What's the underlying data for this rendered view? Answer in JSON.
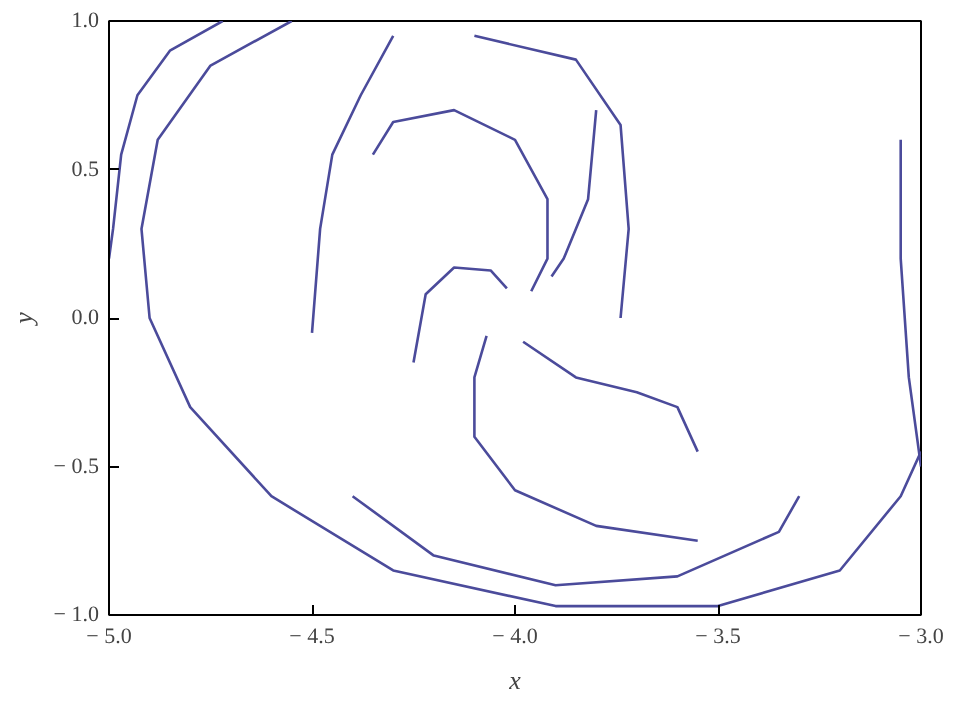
{
  "chart_data": {
    "type": "line",
    "xlabel": "x",
    "ylabel": "y",
    "xlim": [
      -5,
      -3
    ],
    "ylim": [
      -1,
      1
    ],
    "xticks": [
      {
        "value": -5,
        "label": "− 5.0"
      },
      {
        "value": -4.5,
        "label": "− 4.5"
      },
      {
        "value": -4,
        "label": "− 4.0"
      },
      {
        "value": -3.5,
        "label": "− 3.5"
      },
      {
        "value": -3,
        "label": "− 3.0"
      }
    ],
    "yticks": [
      {
        "value": -1,
        "label": "− 1.0"
      },
      {
        "value": -0.5,
        "label": "− 0.5"
      },
      {
        "value": 0,
        "label": "0.0"
      },
      {
        "value": 0.5,
        "label": "0.5"
      },
      {
        "value": 1,
        "label": "1.0"
      }
    ],
    "grid": false,
    "line_style": "solid",
    "marker": "none",
    "series": [
      {
        "color": "#4b4b9b",
        "x": [
          -4.72,
          -4.85,
          -4.93,
          -4.97,
          -4.99,
          -5.0
        ],
        "values": [
          1.0,
          0.9,
          0.75,
          0.55,
          0.3,
          0.2
        ]
      },
      {
        "color": "#4b4b9b",
        "x": [
          -4.55,
          -4.75,
          -4.88,
          -4.92,
          -4.9,
          -4.8,
          -4.6,
          -4.3,
          -3.9,
          -3.5,
          -3.2,
          -3.05,
          -3.0
        ],
        "values": [
          1.0,
          0.85,
          0.6,
          0.3,
          0.0,
          -0.3,
          -0.6,
          -0.85,
          -0.97,
          -0.97,
          -0.85,
          -0.6,
          -0.45
        ]
      },
      {
        "color": "#4b4b9b",
        "x": [
          -3.8,
          -3.82,
          -3.88,
          -3.91
        ],
        "values": [
          0.7,
          0.4,
          0.2,
          0.14
        ]
      },
      {
        "color": "#4b4b9b",
        "x": [
          -4.35,
          -4.3,
          -4.15,
          -4.0,
          -3.92,
          -3.92,
          -3.96
        ],
        "values": [
          0.55,
          0.66,
          0.7,
          0.6,
          0.4,
          0.2,
          0.09
        ]
      },
      {
        "color": "#4b4b9b",
        "x": [
          -4.25,
          -4.22,
          -4.15,
          -4.06,
          -4.02
        ],
        "values": [
          -0.15,
          0.08,
          0.17,
          0.16,
          0.1
        ]
      },
      {
        "color": "#4b4b9b",
        "x": [
          -3.55,
          -3.6,
          -3.7,
          -3.85,
          -3.98
        ],
        "values": [
          -0.45,
          -0.3,
          -0.25,
          -0.2,
          -0.08
        ]
      },
      {
        "color": "#4b4b9b",
        "x": [
          -3.05,
          -3.05,
          -3.03,
          -3.0
        ],
        "values": [
          0.6,
          0.2,
          -0.2,
          -0.5
        ]
      },
      {
        "color": "#4b4b9b",
        "x": [
          -3.55,
          -3.8,
          -4.0,
          -4.1,
          -4.1,
          -4.07
        ],
        "values": [
          -0.75,
          -0.7,
          -0.58,
          -0.4,
          -0.2,
          -0.06
        ]
      },
      {
        "color": "#4b4b9b",
        "x": [
          -4.5,
          -4.48,
          -4.45,
          -4.38,
          -4.3
        ],
        "values": [
          -0.05,
          0.3,
          0.55,
          0.75,
          0.95
        ]
      },
      {
        "color": "#4b4b9b",
        "x": [
          -4.1,
          -3.85,
          -3.74,
          -3.72,
          -3.74
        ],
        "values": [
          0.95,
          0.87,
          0.65,
          0.3,
          0.0
        ]
      },
      {
        "color": "#4b4b9b",
        "x": [
          -4.4,
          -4.2,
          -3.9,
          -3.6,
          -3.35,
          -3.3
        ],
        "values": [
          -0.6,
          -0.8,
          -0.9,
          -0.87,
          -0.72,
          -0.6
        ]
      }
    ]
  }
}
